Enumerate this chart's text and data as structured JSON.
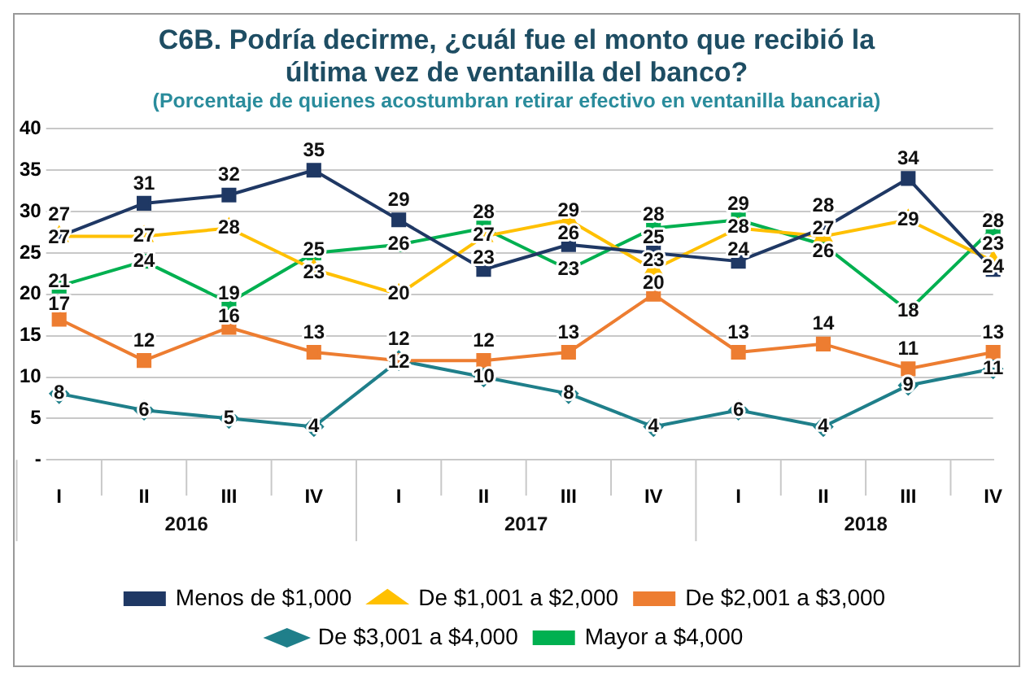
{
  "chart_data": {
    "type": "line",
    "title": "C6B.  Podría decirme, ¿cuál fue el monto que recibió la última vez de ventanilla del banco?",
    "subtitle": "(Porcentaje de quienes acostumbran retirar efectivo en ventanilla bancaria)",
    "categories": [
      "I",
      "II",
      "III",
      "IV",
      "I",
      "II",
      "III",
      "IV",
      "I",
      "II",
      "III",
      "IV"
    ],
    "annotations": [
      "2016",
      "2017",
      "2018"
    ],
    "series": [
      {
        "name": "Menos de $1,000",
        "color": "#1f3864",
        "marker": "square",
        "values": [
          27,
          31,
          32,
          35,
          29,
          23,
          26,
          25,
          24,
          28,
          34,
          23
        ]
      },
      {
        "name": "De $1,001 a $2,000",
        "color": "#ffc000",
        "marker": "triangle",
        "values": [
          27,
          27,
          28,
          23,
          20,
          27,
          29,
          23,
          28,
          27,
          29,
          24
        ]
      },
      {
        "name": "De $2,001 a $3,000",
        "color": "#ed7d31",
        "marker": "square",
        "values": [
          17,
          12,
          16,
          13,
          12,
          12,
          13,
          20,
          13,
          14,
          11,
          13
        ]
      },
      {
        "name": "De $3,001 a $4,000",
        "color": "#1f7f8a",
        "marker": "diamond",
        "values": [
          8,
          6,
          5,
          4,
          12,
          10,
          8,
          4,
          6,
          4,
          9,
          11
        ]
      },
      {
        "name": "Mayor a $4,000",
        "color": "#00b050",
        "marker": "square",
        "values": [
          21,
          24,
          19,
          25,
          26,
          28,
          23,
          28,
          29,
          26,
          18,
          28
        ]
      }
    ],
    "ylim": [
      0,
      40
    ],
    "yticks": [
      {
        "value": 0,
        "label": "-"
      },
      5,
      10,
      15,
      20,
      25,
      30,
      35,
      40
    ],
    "grid": "y",
    "legend": "bottom",
    "data_labels": true,
    "line_style": "solid"
  }
}
